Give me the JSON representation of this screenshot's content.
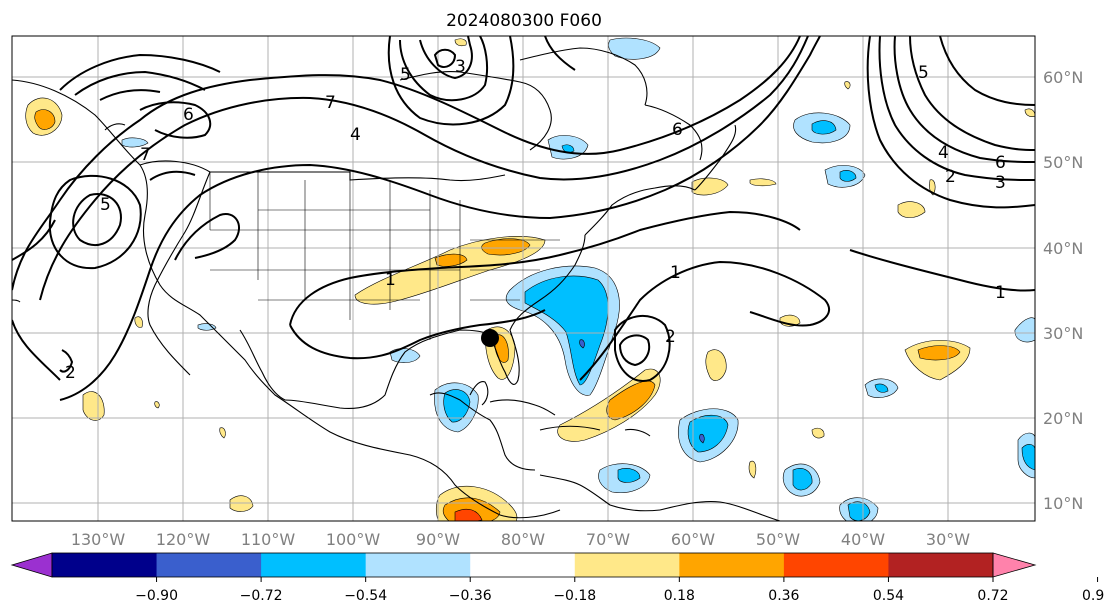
{
  "title": "2024080300 F060",
  "lon_labels": [
    "130°W",
    "120°W",
    "110°W",
    "100°W",
    "90°W",
    "80°W",
    "70°W",
    "60°W",
    "50°W",
    "40°W",
    "30°W"
  ],
  "lat_labels": [
    "60°N",
    "50°N",
    "40°N",
    "30°N",
    "20°N",
    "10°N"
  ],
  "contour_labels": {
    "c1": "1",
    "c2": "2",
    "c3": "3",
    "c4": "4",
    "c5": "5",
    "c6": "6",
    "c7": "7"
  },
  "colorbar": {
    "colors": [
      "#9b30d0",
      "#00008b",
      "#3a5fcd",
      "#00bfff",
      "#b0e2ff",
      "#ffffff",
      "#ffe889",
      "#ffa500",
      "#ff4500",
      "#b22222",
      "#ff82ab"
    ],
    "ticks": [
      "−0.90",
      "−0.72",
      "−0.54",
      "−0.36",
      "−0.18",
      "0.18",
      "0.36",
      "0.54",
      "0.72",
      "0.90"
    ]
  },
  "marker": {
    "name": "storm-position",
    "lon": -84,
    "lat": 29.5
  }
}
